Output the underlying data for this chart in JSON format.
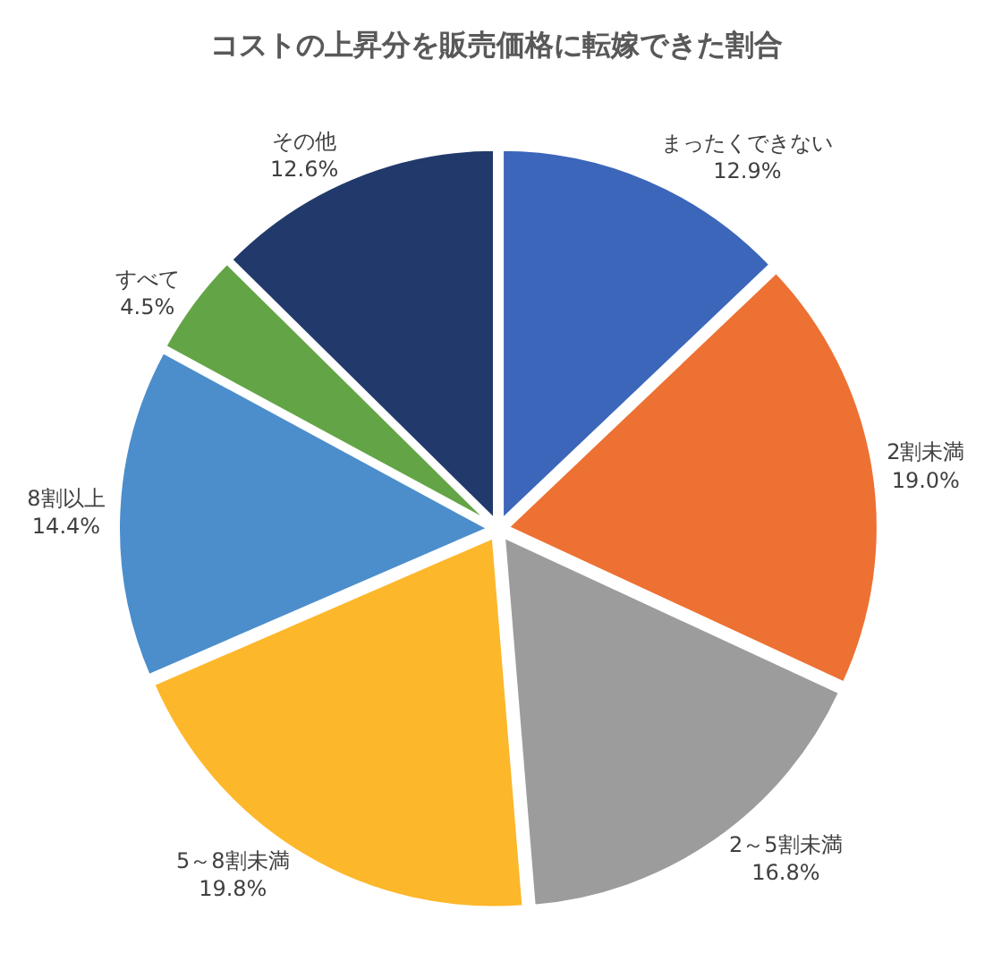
{
  "chart_data": {
    "type": "pie",
    "title": "コストの上昇分を販売価格に転嫁できた割合",
    "categories": [
      "まったくできない",
      "2割未満",
      "2～5割未満",
      "5～8割未満",
      "8割以上",
      "すべて",
      "その他"
    ],
    "values": [
      12.9,
      19.0,
      16.8,
      19.8,
      14.4,
      4.5,
      12.6
    ],
    "value_labels": [
      "12.9%",
      "19.0%",
      "16.8%",
      "19.8%",
      "14.4%",
      "4.5%",
      "12.6%"
    ],
    "colors": [
      "#3c66ba",
      "#ed7132",
      "#9c9c9c",
      "#fdb72a",
      "#4c8ecc",
      "#63a546",
      "#223a6b"
    ],
    "legend": false
  }
}
